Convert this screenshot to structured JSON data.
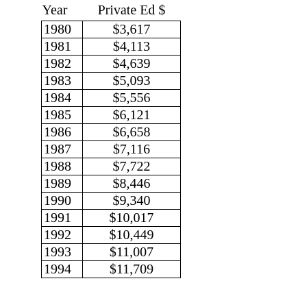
{
  "chart_data": {
    "type": "table",
    "columns": [
      "Year",
      "Private Ed $"
    ],
    "rows": [
      [
        "1980",
        "$3,617"
      ],
      [
        "1981",
        "$4,113"
      ],
      [
        "1982",
        "$4,639"
      ],
      [
        "1983",
        "$5,093"
      ],
      [
        "1984",
        "$5,556"
      ],
      [
        "1985",
        "$6,121"
      ],
      [
        "1986",
        "$6,658"
      ],
      [
        "1987",
        "$7,116"
      ],
      [
        "1988",
        "$7,722"
      ],
      [
        "1989",
        "$8,446"
      ],
      [
        "1990",
        "$9,340"
      ],
      [
        "1991",
        "$10,017"
      ],
      [
        "1992",
        "$10,449"
      ],
      [
        "1993",
        "$11,007"
      ],
      [
        "1994",
        "$11,709"
      ]
    ]
  }
}
